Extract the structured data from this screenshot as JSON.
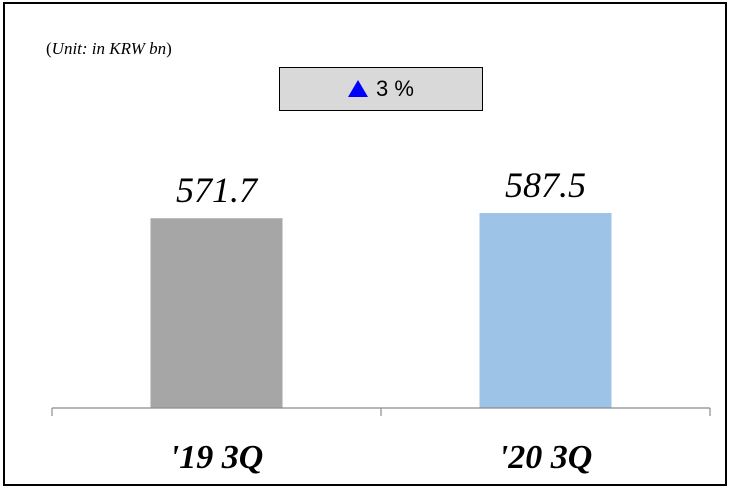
{
  "unit_note": {
    "prefix": "(",
    "label": "Unit: in KRW bn",
    "suffix": ")"
  },
  "growth_badge": {
    "icon": "up-triangle-icon",
    "icon_color": "#0000ff",
    "value": "3 %"
  },
  "chart_data": {
    "type": "bar",
    "categories": [
      "'19 3Q",
      "'20 3Q"
    ],
    "values": [
      571.7,
      587.5
    ],
    "value_labels": [
      "571.7",
      "587.5"
    ],
    "colors": [
      "#a6a6a6",
      "#9dc3e6"
    ],
    "ylim": [
      0,
      600
    ],
    "grid": false,
    "legend": "none"
  }
}
